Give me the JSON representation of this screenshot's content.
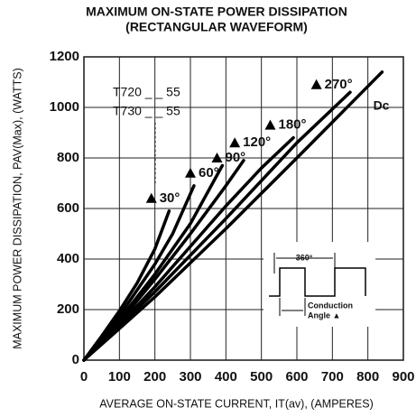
{
  "chart_data": {
    "type": "line",
    "title": "MAXIMUM ON-STATE POWER DISSIPATION",
    "subtitle": "(RECTANGULAR WAVEFORM)",
    "x_label": "AVERAGE ON-STATE CURRENT, IT(av), (AMPERES)",
    "y_label": "MAXIMUM POWER DISSIPATION, PAV(Max), (WATTS)",
    "xlim": [
      0,
      900
    ],
    "xticks": [
      0,
      100,
      200,
      300,
      400,
      500,
      600,
      700,
      800,
      900
    ],
    "ylim": [
      0,
      1200
    ],
    "yticks": [
      0,
      200,
      400,
      600,
      800,
      1000,
      1200
    ],
    "grid": true,
    "color": "#000000",
    "series": [
      {
        "name": "30°",
        "x": [
          0,
          50,
          100,
          150,
          200,
          240
        ],
        "values": [
          0,
          95,
          195,
          305,
          440,
          590
        ]
      },
      {
        "name": "60°",
        "x": [
          0,
          100,
          200,
          250,
          310
        ],
        "values": [
          0,
          175,
          380,
          500,
          690
        ]
      },
      {
        "name": "90°",
        "x": [
          0,
          100,
          200,
          300,
          390
        ],
        "values": [
          0,
          160,
          340,
          540,
          770
        ]
      },
      {
        "name": "120°",
        "x": [
          0,
          100,
          200,
          300,
          400,
          450
        ],
        "values": [
          0,
          150,
          320,
          500,
          690,
          790
        ]
      },
      {
        "name": "180°",
        "x": [
          0,
          100,
          200,
          300,
          400,
          500,
          590
        ],
        "values": [
          0,
          140,
          290,
          450,
          610,
          760,
          880
        ]
      },
      {
        "name": "270°",
        "x": [
          0,
          200,
          400,
          600,
          750
        ],
        "values": [
          0,
          270,
          560,
          860,
          1060
        ]
      },
      {
        "name": "Dc",
        "x": [
          0,
          200,
          400,
          600,
          840
        ],
        "values": [
          0,
          250,
          520,
          800,
          1140
        ]
      }
    ],
    "markers": [
      {
        "x": 190,
        "y": 640,
        "label": "30°"
      },
      {
        "x": 300,
        "y": 740,
        "label": "60°"
      },
      {
        "x": 375,
        "y": 800,
        "label": "90°"
      },
      {
        "x": 425,
        "y": 860,
        "label": "120°"
      },
      {
        "x": 525,
        "y": 930,
        "label": "180°"
      },
      {
        "x": 655,
        "y": 1090,
        "label": "270°"
      }
    ],
    "dc_label": {
      "x": 815,
      "y": 1005,
      "label": "Dc"
    },
    "notes": [
      "T720 _ _ 55",
      "T730 _ _ 55"
    ],
    "inset": {
      "period": "360°",
      "conduction": "Conduction",
      "angle": "Angle ▲"
    }
  }
}
